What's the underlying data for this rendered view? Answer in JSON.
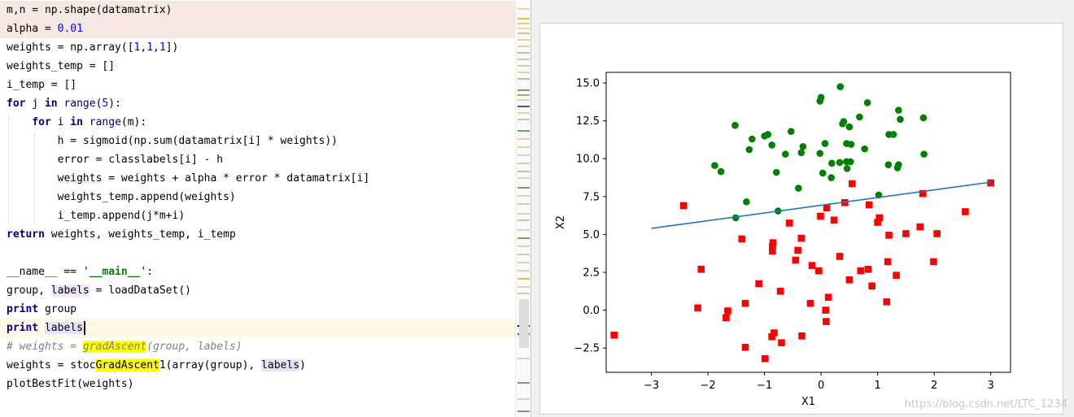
{
  "editor": {
    "lines": [
      {
        "text": "m,n = np.shape(datamatrix)"
      },
      {
        "text": "alpha = 0.01"
      },
      {
        "text": "weights = np.array([1,1,1])"
      },
      {
        "text": "weights_temp = []"
      },
      {
        "text": "i_temp = []"
      },
      {
        "text": "for j in range(5):"
      },
      {
        "text": "    for i in range(m):"
      },
      {
        "text": "        h = sigmoid(np.sum(datamatrix[i] * weights))"
      },
      {
        "text": "        error = classlabels[i] - h"
      },
      {
        "text": "        weights = weights + alpha * error * datamatrix[i]"
      },
      {
        "text": "        weights_temp.append(weights)"
      },
      {
        "text": "        i_temp.append(j*m+i)"
      },
      {
        "text": "return weights, weights_temp, i_temp"
      },
      {
        "text": ""
      },
      {
        "text": "__name__ == '__main__':"
      },
      {
        "text": "group, labels = loadDataSet()"
      },
      {
        "text": "print group"
      },
      {
        "text": "print labels"
      },
      {
        "text": "# weights = gradAscent(group, labels)"
      },
      {
        "text": "weights = stocGradAscent1(array(group), labels)"
      },
      {
        "text": "plotBestFit(weights)"
      }
    ]
  },
  "plot": {
    "watermark": "https://blog.csdn.net/LTC_1234"
  },
  "colors": {
    "class0": "#008000",
    "class1": "#ff0000",
    "line": "#1f77b4",
    "keyword": "#000080",
    "number": "#0000ff",
    "string": "#008000"
  },
  "chart_data": {
    "type": "scatter",
    "xlabel": "X1",
    "ylabel": "X2",
    "xlim": [
      -3.8,
      3.35
    ],
    "ylim": [
      -4.1,
      15.7
    ],
    "xticks": [
      -3,
      -2,
      -1,
      0,
      1,
      2,
      3
    ],
    "yticks": [
      -2.5,
      0.0,
      2.5,
      5.0,
      7.5,
      10.0,
      12.5,
      15.0
    ],
    "xtick_labels": [
      "−3",
      "−2",
      "−1",
      "0",
      "1",
      "2",
      "3"
    ],
    "ytick_labels": [
      "−2.5",
      "0.0",
      "2.5",
      "5.0",
      "7.5",
      "10.0",
      "12.5",
      "15.0"
    ],
    "series": [
      {
        "marker": "circle",
        "color": "#008000",
        "points": [
          [
            0.34,
            14.75
          ],
          [
            -0.02,
            13.8
          ],
          [
            0.0,
            14.05
          ],
          [
            0.82,
            13.7
          ],
          [
            1.37,
            13.2
          ],
          [
            0.68,
            12.75
          ],
          [
            1.81,
            12.7
          ],
          [
            1.4,
            12.6
          ],
          [
            0.4,
            12.45
          ],
          [
            0.38,
            12.3
          ],
          [
            0.5,
            12.1
          ],
          [
            -1.52,
            12.2
          ],
          [
            -0.53,
            11.8
          ],
          [
            -0.94,
            11.6
          ],
          [
            -1.0,
            11.5
          ],
          [
            1.2,
            11.6
          ],
          [
            1.28,
            11.6
          ],
          [
            -1.22,
            11.3
          ],
          [
            0.45,
            11.0
          ],
          [
            0.53,
            10.95
          ],
          [
            0.07,
            11.0
          ],
          [
            -0.87,
            10.9
          ],
          [
            -0.32,
            10.8
          ],
          [
            0.77,
            10.65
          ],
          [
            -1.27,
            10.6
          ],
          [
            -0.35,
            10.4
          ],
          [
            -0.02,
            10.35
          ],
          [
            -0.63,
            10.3
          ],
          [
            1.82,
            10.3
          ],
          [
            0.45,
            9.8
          ],
          [
            0.52,
            9.8
          ],
          [
            0.33,
            9.75
          ],
          [
            0.19,
            9.7
          ],
          [
            1.37,
            9.6
          ],
          [
            1.19,
            9.6
          ],
          [
            1.35,
            9.4
          ],
          [
            0.46,
            9.35
          ],
          [
            -1.88,
            9.55
          ],
          [
            -1.77,
            9.15
          ],
          [
            -0.79,
            9.1
          ],
          [
            0.03,
            9.05
          ],
          [
            0.18,
            8.75
          ],
          [
            -0.4,
            8.05
          ],
          [
            1.02,
            7.6
          ],
          [
            -1.32,
            7.15
          ],
          [
            -0.76,
            6.55
          ],
          [
            -1.51,
            6.1
          ]
        ]
      },
      {
        "marker": "square",
        "color": "#ff0000",
        "points": [
          [
            3.0,
            8.4
          ],
          [
            1.8,
            7.7
          ],
          [
            -2.43,
            6.9
          ],
          [
            0.55,
            8.35
          ],
          [
            0.42,
            7.1
          ],
          [
            0.1,
            6.75
          ],
          [
            0.85,
            6.95
          ],
          [
            2.55,
            6.5
          ],
          [
            -0.01,
            6.2
          ],
          [
            0.23,
            5.95
          ],
          [
            1.03,
            6.1
          ],
          [
            1.0,
            5.8
          ],
          [
            -0.56,
            5.75
          ],
          [
            1.75,
            5.5
          ],
          [
            1.5,
            5.05
          ],
          [
            2.05,
            5.05
          ],
          [
            1.2,
            4.95
          ],
          [
            -0.35,
            4.75
          ],
          [
            -1.4,
            4.7
          ],
          [
            -0.85,
            4.45
          ],
          [
            -0.86,
            4.2
          ],
          [
            -0.41,
            3.95
          ],
          [
            -0.86,
            3.9
          ],
          [
            0.33,
            3.55
          ],
          [
            -0.45,
            3.3
          ],
          [
            1.18,
            3.2
          ],
          [
            1.99,
            3.2
          ],
          [
            -0.16,
            2.95
          ],
          [
            0.83,
            2.7
          ],
          [
            -2.12,
            2.7
          ],
          [
            0.7,
            2.6
          ],
          [
            -0.04,
            2.6
          ],
          [
            1.33,
            2.3
          ],
          [
            0.5,
            2.0
          ],
          [
            -1.1,
            1.75
          ],
          [
            0.9,
            1.6
          ],
          [
            -0.72,
            1.25
          ],
          [
            0.13,
            0.85
          ],
          [
            1.16,
            0.55
          ],
          [
            -1.34,
            0.45
          ],
          [
            -0.19,
            0.45
          ],
          [
            -2.18,
            0.15
          ],
          [
            0.08,
            0.0
          ],
          [
            -1.65,
            -0.05
          ],
          [
            -1.68,
            -0.5
          ],
          [
            0.09,
            -0.75
          ],
          [
            -0.83,
            -1.5
          ],
          [
            -0.87,
            -1.75
          ],
          [
            -0.34,
            -1.7
          ],
          [
            -3.66,
            -1.65
          ],
          [
            -0.7,
            -2.15
          ],
          [
            -1.34,
            -2.45
          ],
          [
            -0.99,
            -3.2
          ]
        ]
      }
    ],
    "line": {
      "x": [
        -3.0,
        3.0
      ],
      "y": [
        5.4,
        8.45
      ],
      "color": "#1f77b4"
    }
  }
}
